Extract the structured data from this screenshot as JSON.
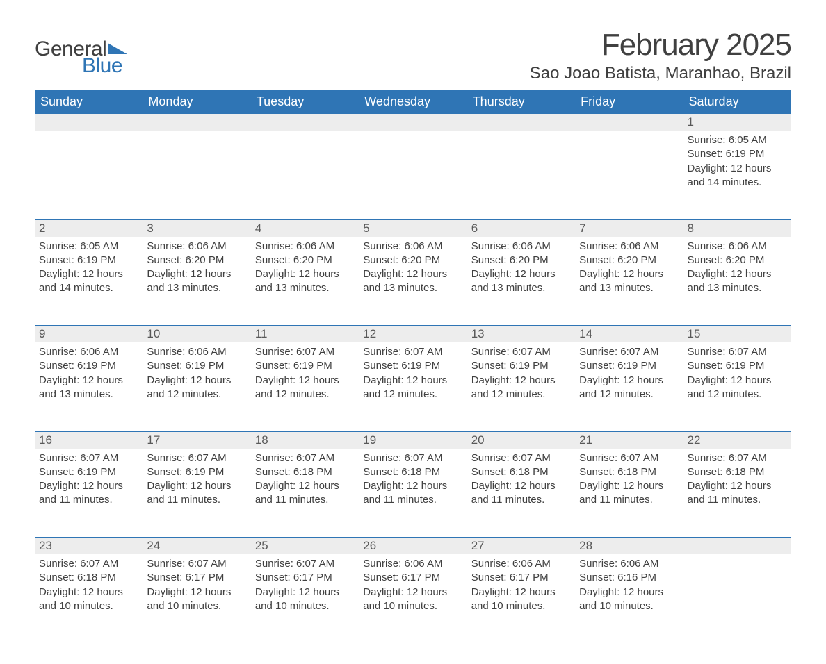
{
  "logo": {
    "word1": "General",
    "word2": "Blue",
    "tri_color": "#2f75b5"
  },
  "title": "February 2025",
  "location": "Sao Joao Batista, Maranhao, Brazil",
  "header_bg": "#2f75b5",
  "header_text": "#ffffff",
  "daynum_bg": "#ededed",
  "border_color": "#2f75b5",
  "text_color": "#404040",
  "dow": [
    "Sunday",
    "Monday",
    "Tuesday",
    "Wednesday",
    "Thursday",
    "Friday",
    "Saturday"
  ],
  "weeks": [
    [
      null,
      null,
      null,
      null,
      null,
      null,
      {
        "n": "1",
        "sr": "6:05 AM",
        "ss": "6:19 PM",
        "dl": "12 hours and 14 minutes."
      }
    ],
    [
      {
        "n": "2",
        "sr": "6:05 AM",
        "ss": "6:19 PM",
        "dl": "12 hours and 14 minutes."
      },
      {
        "n": "3",
        "sr": "6:06 AM",
        "ss": "6:20 PM",
        "dl": "12 hours and 13 minutes."
      },
      {
        "n": "4",
        "sr": "6:06 AM",
        "ss": "6:20 PM",
        "dl": "12 hours and 13 minutes."
      },
      {
        "n": "5",
        "sr": "6:06 AM",
        "ss": "6:20 PM",
        "dl": "12 hours and 13 minutes."
      },
      {
        "n": "6",
        "sr": "6:06 AM",
        "ss": "6:20 PM",
        "dl": "12 hours and 13 minutes."
      },
      {
        "n": "7",
        "sr": "6:06 AM",
        "ss": "6:20 PM",
        "dl": "12 hours and 13 minutes."
      },
      {
        "n": "8",
        "sr": "6:06 AM",
        "ss": "6:20 PM",
        "dl": "12 hours and 13 minutes."
      }
    ],
    [
      {
        "n": "9",
        "sr": "6:06 AM",
        "ss": "6:19 PM",
        "dl": "12 hours and 13 minutes."
      },
      {
        "n": "10",
        "sr": "6:06 AM",
        "ss": "6:19 PM",
        "dl": "12 hours and 12 minutes."
      },
      {
        "n": "11",
        "sr": "6:07 AM",
        "ss": "6:19 PM",
        "dl": "12 hours and 12 minutes."
      },
      {
        "n": "12",
        "sr": "6:07 AM",
        "ss": "6:19 PM",
        "dl": "12 hours and 12 minutes."
      },
      {
        "n": "13",
        "sr": "6:07 AM",
        "ss": "6:19 PM",
        "dl": "12 hours and 12 minutes."
      },
      {
        "n": "14",
        "sr": "6:07 AM",
        "ss": "6:19 PM",
        "dl": "12 hours and 12 minutes."
      },
      {
        "n": "15",
        "sr": "6:07 AM",
        "ss": "6:19 PM",
        "dl": "12 hours and 12 minutes."
      }
    ],
    [
      {
        "n": "16",
        "sr": "6:07 AM",
        "ss": "6:19 PM",
        "dl": "12 hours and 11 minutes."
      },
      {
        "n": "17",
        "sr": "6:07 AM",
        "ss": "6:19 PM",
        "dl": "12 hours and 11 minutes."
      },
      {
        "n": "18",
        "sr": "6:07 AM",
        "ss": "6:18 PM",
        "dl": "12 hours and 11 minutes."
      },
      {
        "n": "19",
        "sr": "6:07 AM",
        "ss": "6:18 PM",
        "dl": "12 hours and 11 minutes."
      },
      {
        "n": "20",
        "sr": "6:07 AM",
        "ss": "6:18 PM",
        "dl": "12 hours and 11 minutes."
      },
      {
        "n": "21",
        "sr": "6:07 AM",
        "ss": "6:18 PM",
        "dl": "12 hours and 11 minutes."
      },
      {
        "n": "22",
        "sr": "6:07 AM",
        "ss": "6:18 PM",
        "dl": "12 hours and 11 minutes."
      }
    ],
    [
      {
        "n": "23",
        "sr": "6:07 AM",
        "ss": "6:18 PM",
        "dl": "12 hours and 10 minutes."
      },
      {
        "n": "24",
        "sr": "6:07 AM",
        "ss": "6:17 PM",
        "dl": "12 hours and 10 minutes."
      },
      {
        "n": "25",
        "sr": "6:07 AM",
        "ss": "6:17 PM",
        "dl": "12 hours and 10 minutes."
      },
      {
        "n": "26",
        "sr": "6:06 AM",
        "ss": "6:17 PM",
        "dl": "12 hours and 10 minutes."
      },
      {
        "n": "27",
        "sr": "6:06 AM",
        "ss": "6:17 PM",
        "dl": "12 hours and 10 minutes."
      },
      {
        "n": "28",
        "sr": "6:06 AM",
        "ss": "6:16 PM",
        "dl": "12 hours and 10 minutes."
      },
      null
    ]
  ],
  "labels": {
    "sunrise": "Sunrise: ",
    "sunset": "Sunset: ",
    "daylight": "Daylight: "
  }
}
